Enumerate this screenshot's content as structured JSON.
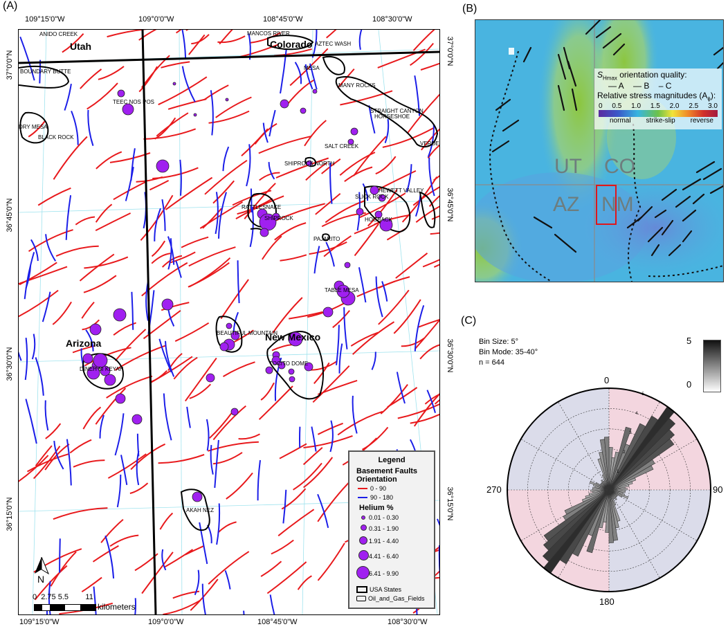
{
  "panels": {
    "a": "(A)",
    "b": "(B)",
    "c": "(C)"
  },
  "map_a": {
    "top_lon_labels": [
      "109°15'0\"W",
      "109°0'0\"W",
      "108°45'0\"W",
      "108°30'0\"W"
    ],
    "bottom_lon_labels": [
      "109°15'0\"W",
      "109°0'0\"W",
      "108°45'0\"W",
      "108°30'0\"W"
    ],
    "left_lat_labels": [
      "37°0'0\"N",
      "36°45'0\"N",
      "36°30'0\"N",
      "36°15'0\"N"
    ],
    "right_lat_labels": [
      "37°0'0\"N",
      "36°45'0\"N",
      "36°30'0\"N",
      "36°15'0\"N"
    ],
    "states": {
      "utah": "Utah",
      "colorado": "Colorado",
      "arizona": "Arizona",
      "new_mexico": "New Mexico"
    },
    "places": [
      "ANIDO CREEK",
      "MANCOS RIVER",
      "AZTEC WASH",
      "BOUNDARY BUTTE",
      "MESA",
      "MANY ROCKS",
      "TEEC NOS POS",
      "STRAIGHT CANYON",
      "DRY MESA",
      "BLACK ROCK",
      "HORSESHOE",
      "VERDE",
      "SALT CREEK",
      "SHIPROCK NORTH",
      "HEWETT VALLEY",
      "SLICK ROCK",
      "RATTLESNAKE",
      "SHIPROCK",
      "HOGBACK",
      "PAJARITO",
      "TABLE MESA",
      "BEAUTIFUL MOUNTAIN",
      "TOCITO DOME",
      "DINEH BI KEYAH",
      "AKAH NEZ"
    ],
    "scale": {
      "ticks": "0  2.75 5.5        11",
      "unit": "kilometers"
    },
    "north_arrow": "N",
    "legend": {
      "title": "Legend",
      "faults_title": "Basement Faults",
      "orientation_title": "Orientation",
      "fault_classes": [
        {
          "label": "0 - 90",
          "color": "#e8191c"
        },
        {
          "label": "90 - 180",
          "color": "#1b1ee8"
        }
      ],
      "helium_title": "Helium %",
      "helium_classes": [
        "0.01 - 0.30",
        "0.31 - 1.90",
        "1.91 - 4.40",
        "4.41 - 6.40",
        "6.41 - 9.90"
      ],
      "helium_color": "#a020f0",
      "boundaries": [
        "USA States",
        "Oil_and_Gas_Fields"
      ]
    }
  },
  "map_b": {
    "title_sym": "S",
    "title_sub": "Hmax",
    "title_rest": " orientation quality:",
    "quality": [
      "— A",
      "— B",
      "– C"
    ],
    "magnitude_title": "Relative stress magnitudes (A",
    "magnitude_sub": "ϕ",
    "magnitude_close": "):",
    "scale_ticks": [
      "0",
      "0.5",
      "1.0",
      "1.5",
      "2.0",
      "2.5",
      "3.0"
    ],
    "regimes": [
      "normal",
      "strike-slip",
      "reverse"
    ],
    "state_labels": [
      "UT",
      "CO",
      "AZ",
      "NM"
    ],
    "highlight_color": "#e0161b"
  },
  "rose": {
    "info": [
      "Bin Size: 5°",
      "Bin Mode: 35-40°",
      "n =  644"
    ],
    "colorbar": {
      "max": "5",
      "min": "0"
    },
    "axis_labels": {
      "top": "0",
      "right": "90",
      "bottom": "180",
      "left": "270"
    },
    "ring_labels": [
      "1",
      "2",
      "3",
      "4",
      "5"
    ]
  },
  "chart_data": {
    "type": "rose",
    "bin_size_deg": 5,
    "mode_bin": "35-40",
    "n": 644,
    "bins_deg_start": [
      0,
      5,
      10,
      15,
      20,
      25,
      30,
      35,
      40,
      45,
      50,
      55,
      60,
      65,
      70,
      75,
      80,
      85,
      90,
      95,
      100,
      105,
      110,
      115,
      120,
      125,
      130,
      135,
      140,
      145,
      150,
      155,
      160,
      165,
      170,
      175
    ],
    "percent": [
      2.1,
      1.6,
      1.9,
      3.2,
      2.4,
      3.6,
      4.2,
      5.0,
      4.6,
      4.2,
      3.9,
      2.6,
      2.4,
      1.4,
      1.2,
      1.0,
      0.8,
      0.9,
      0.8,
      0.8,
      0.7,
      0.8,
      1.0,
      0.7,
      0.5,
      0.5,
      0.5,
      0.5,
      0.6,
      0.5,
      0.5,
      0.8,
      1.6,
      1.9,
      2.5,
      2.6
    ],
    "ring_percent": [
      1,
      2,
      3,
      4,
      5
    ]
  }
}
